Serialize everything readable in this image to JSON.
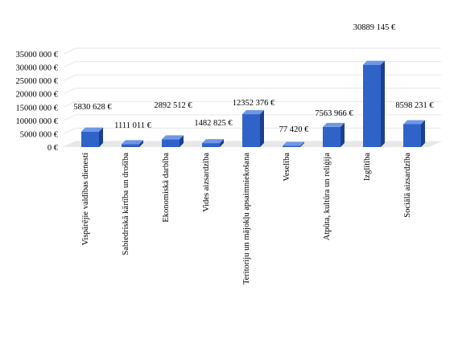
{
  "chart_data": {
    "type": "bar",
    "style": "3d-column",
    "categories": [
      "Vispārējie valdības dienesti",
      "Sabiedriskā kārtība un drošība",
      "Ekonomiskā darbība",
      "Vides aizsardzība",
      "Teritoriju un mājokļu apsaimniekošana",
      "Veselība",
      "Atpūta, kultūra un reliģija",
      "Izglītība",
      "Sociālā aizsardzība"
    ],
    "values": [
      5830628,
      1111011,
      2892512,
      1482825,
      12352376,
      77420,
      7563966,
      30889145,
      8598231
    ],
    "data_labels": [
      "5830 628 €",
      "1111 011 €",
      "2892 512 €",
      "1482 825 €",
      "12352 376 €",
      "77 420 €",
      "7563 966 €",
      "30889 145 €",
      "8598 231 €"
    ],
    "y_ticks": [
      0,
      5000000,
      10000000,
      15000000,
      20000000,
      25000000,
      30000000,
      35000000
    ],
    "y_tick_labels": [
      "0 €",
      "5000 000 €",
      "10000 000 €",
      "15000 000 €",
      "20000 000 €",
      "25000 000 €",
      "30000 000 €",
      "35000 000 €"
    ],
    "ylim": [
      0,
      35000000
    ],
    "grid": true,
    "legend": "none",
    "title": "",
    "xlabel": "",
    "ylabel": "",
    "colors": {
      "bar_front": "#2f63c8",
      "bar_side": "#1c3f8f",
      "bar_top": "#6f97e6",
      "gridline": "#e6e6e6",
      "floor": "#e8e8e8"
    }
  }
}
